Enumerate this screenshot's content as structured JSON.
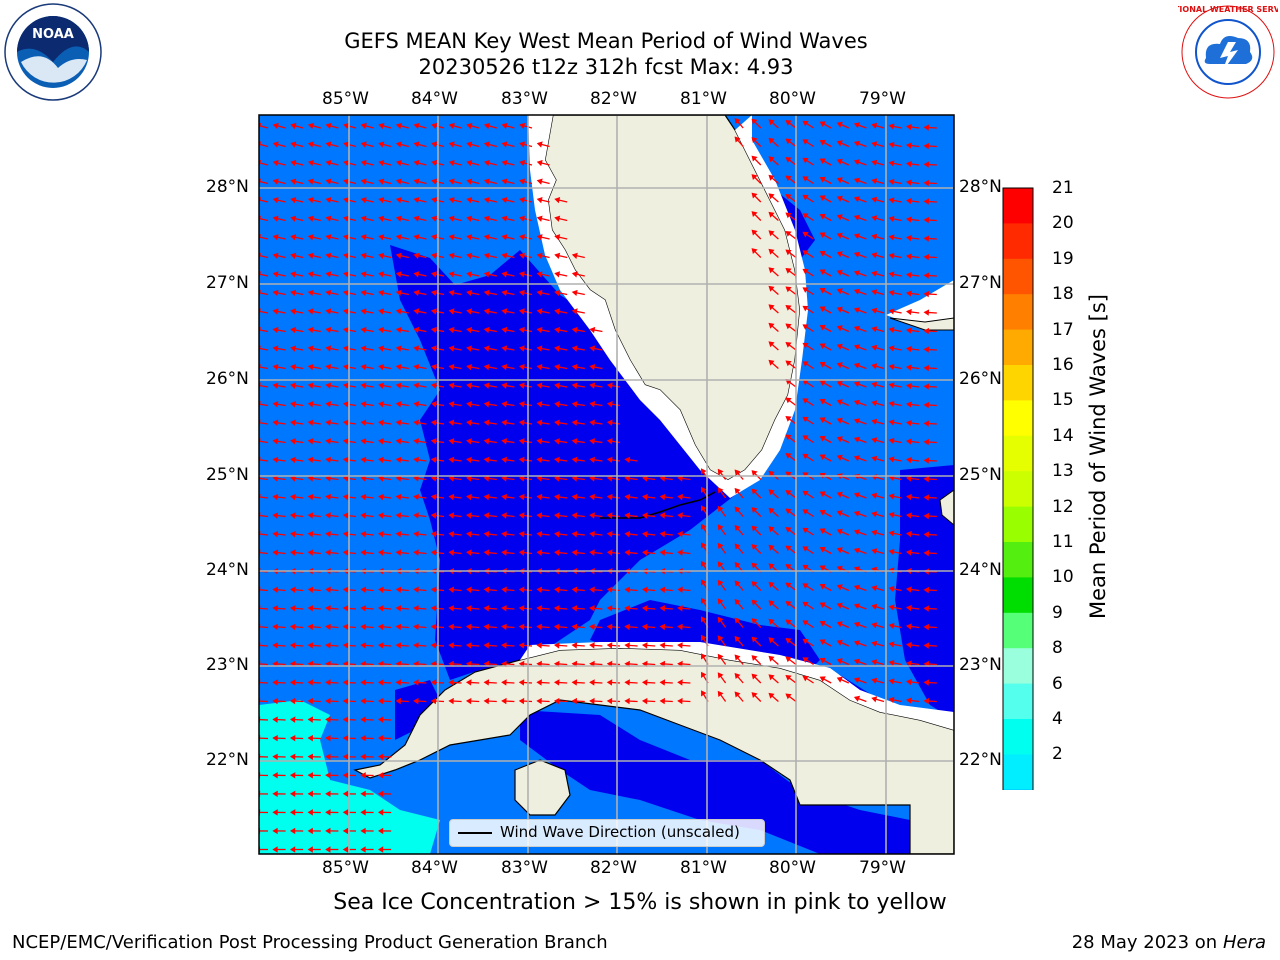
{
  "title_line1": "GEFS MEAN Key West Mean Period of Wind Waves",
  "title_line2": "20230526 t12z 312h fcst   Max: 4.93",
  "note": "Sea Ice Concentration > 15% is shown in pink to yellow",
  "footer_left": "NCEP/EMC/Verification Post Processing Product Generation Branch",
  "footer_date": "28 May 2023 on",
  "footer_host": "Hera",
  "legend_label": "Wind Wave Direction (unscaled)",
  "lon_labels": [
    "85°W",
    "84°W",
    "83°W",
    "82°W",
    "81°W",
    "80°W",
    "79°W"
  ],
  "lat_labels": [
    "28°N",
    "27°N",
    "26°N",
    "25°N",
    "24°N",
    "23°N",
    "22°N"
  ],
  "colorbar": {
    "title": "Mean Period of Wind Waves [s]",
    "ticks": [
      "21",
      "20",
      "19",
      "18",
      "17",
      "16",
      "15",
      "14",
      "13",
      "12",
      "11",
      "10",
      "9",
      "8",
      "6",
      "4",
      "2"
    ],
    "colors": [
      "#ff0000",
      "#ff2a00",
      "#ff5500",
      "#ff8000",
      "#ffaa00",
      "#ffd500",
      "#ffff00",
      "#e6ff00",
      "#ccff00",
      "#99ff00",
      "#55ee11",
      "#00dd00",
      "#55ff77",
      "#99ffdd",
      "#55ffee",
      "#00ffee",
      "#00eeff",
      "#0077ff"
    ]
  },
  "colors": {
    "period_2_4": "#0077ff",
    "period_below_2": "#0000ee",
    "period_4_6": "#00ffee",
    "land": "#efefdf",
    "arrow": "#ff0000"
  },
  "logos": {
    "noaa": "NOAA",
    "nws": "NATIONAL WEATHER SERVICE"
  }
}
